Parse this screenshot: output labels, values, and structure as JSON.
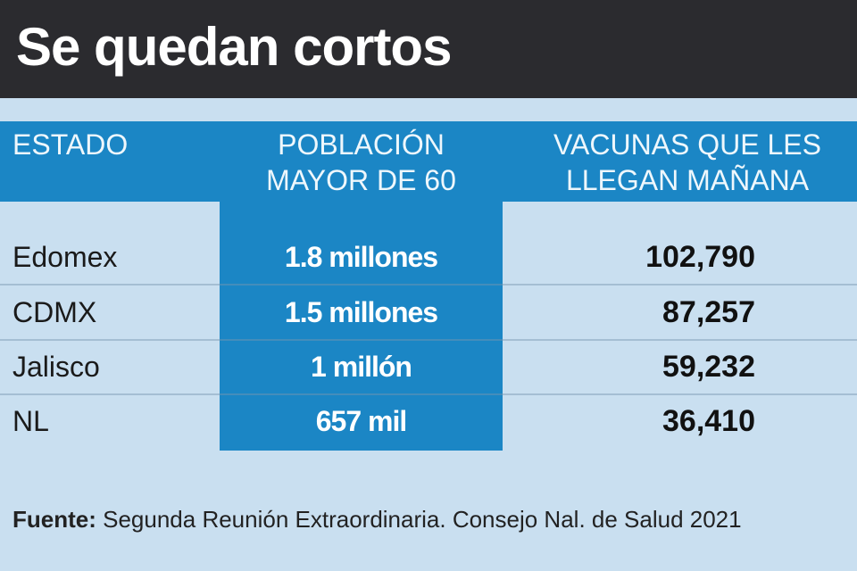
{
  "title": "Se quedan cortos",
  "headers": {
    "estado": "ESTADO",
    "poblacion_line1": "POBLACIÓN",
    "poblacion_line2": "MAYOR DE 60",
    "vacunas_line1": "VACUNAS QUE LES",
    "vacunas_line2": "LLEGAN MAÑANA"
  },
  "rows": [
    {
      "estado": "Edomex",
      "poblacion": "1.8 millones",
      "vacunas": "102,790"
    },
    {
      "estado": "CDMX",
      "poblacion": "1.5 millones",
      "vacunas": "87,257"
    },
    {
      "estado": "Jalisco",
      "poblacion": "1 millón",
      "vacunas": "59,232"
    },
    {
      "estado": "NL",
      "poblacion": "657 mil",
      "vacunas": "36,410"
    }
  ],
  "source": {
    "label": "Fuente:",
    "text": " Segunda Reunión Extraordinaria. Consejo Nal. de Salud 2021"
  },
  "colors": {
    "title_bg": "#2b2b2f",
    "accent_blue": "#1b86c5",
    "background": "#c9dff0"
  },
  "chart_data": {
    "type": "table",
    "title": "Se quedan cortos",
    "columns": [
      "ESTADO",
      "POBLACIÓN MAYOR DE 60",
      "VACUNAS QUE LES LLEGAN MAÑANA"
    ],
    "categories": [
      "Edomex",
      "CDMX",
      "Jalisco",
      "NL"
    ],
    "series": [
      {
        "name": "POBLACIÓN MAYOR DE 60",
        "values": [
          1800000,
          1500000,
          1000000,
          657000
        ]
      },
      {
        "name": "VACUNAS QUE LES LLEGAN MAÑANA",
        "values": [
          102790,
          87257,
          59232,
          36410
        ]
      }
    ]
  }
}
